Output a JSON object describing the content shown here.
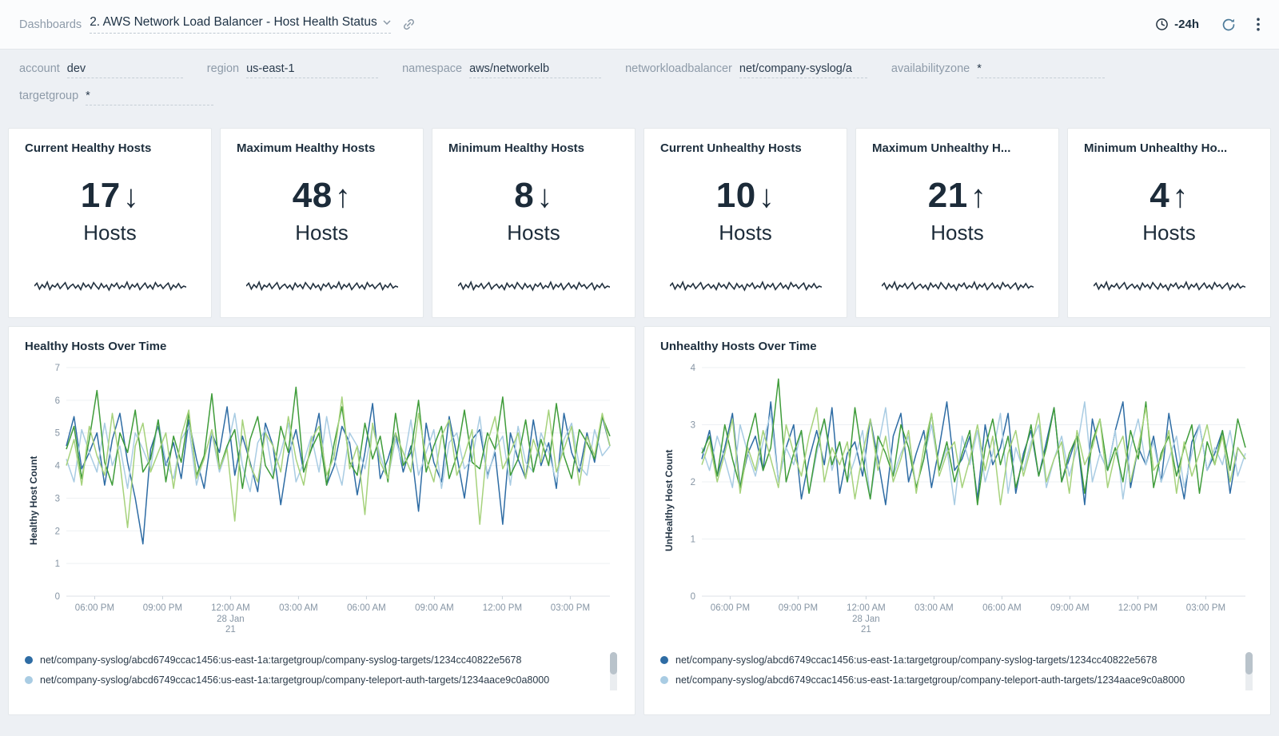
{
  "header": {
    "breadcrumb": "Dashboards",
    "title": "2. AWS Network Load Balancer - Host Health Status",
    "time_range": "-24h"
  },
  "filters": [
    {
      "label": "account",
      "value": "dev"
    },
    {
      "label": "region",
      "value": "us-east-1"
    },
    {
      "label": "namespace",
      "value": "aws/networkelb"
    },
    {
      "label": "networkloadbalancer",
      "value": "net/company-syslog/a"
    },
    {
      "label": "availabilityzone",
      "value": "*"
    },
    {
      "label": "targetgroup",
      "value": "*"
    }
  ],
  "stat_panels": [
    {
      "title": "Current Healthy Hosts",
      "value": "17",
      "arrow": "↓",
      "unit": "Hosts"
    },
    {
      "title": "Maximum Healthy Hosts",
      "value": "48",
      "arrow": "↑",
      "unit": "Hosts"
    },
    {
      "title": "Minimum Healthy Hosts",
      "value": "8",
      "arrow": "↓",
      "unit": "Hosts"
    },
    {
      "title": "Current Unhealthy Hosts",
      "value": "10",
      "arrow": "↓",
      "unit": "Hosts"
    },
    {
      "title": "Maximum Unhealthy H...",
      "value": "21",
      "arrow": "↑",
      "unit": "Hosts"
    },
    {
      "title": "Minimum Unhealthy Ho...",
      "value": "4",
      "arrow": "↑",
      "unit": "Hosts"
    }
  ],
  "sparkline": [
    0.5,
    0.56,
    0.44,
    0.53,
    0.47,
    0.58,
    0.43,
    0.52,
    0.48,
    0.55,
    0.45,
    0.51,
    0.57,
    0.44,
    0.5,
    0.54,
    0.46,
    0.52,
    0.43,
    0.56,
    0.48,
    0.53,
    0.45,
    0.57,
    0.5,
    0.44,
    0.55,
    0.47,
    0.52,
    0.42,
    0.54,
    0.49,
    0.56,
    0.45,
    0.51,
    0.47,
    0.58,
    0.44,
    0.53,
    0.48,
    0.55,
    0.43,
    0.5,
    0.56,
    0.46,
    0.52,
    0.44,
    0.57,
    0.49,
    0.53,
    0.45,
    0.51,
    0.56,
    0.43,
    0.52,
    0.47,
    0.55,
    0.46,
    0.5,
    0.48
  ],
  "chart_data": [
    {
      "type": "line",
      "title": "Healthy Hosts Over Time",
      "ylabel": "Healthy Host Count",
      "ylim": [
        0,
        7
      ],
      "yticks": [
        0,
        1,
        2,
        3,
        4,
        5,
        6,
        7
      ],
      "grid": true,
      "legend_position": "bottom",
      "xticks": [
        {
          "label": "06:00 PM"
        },
        {
          "label": "09:00 PM"
        },
        {
          "label": "12:00 AM",
          "sub": [
            "28 Jan",
            "21"
          ]
        },
        {
          "label": "03:00 AM"
        },
        {
          "label": "06:00 AM"
        },
        {
          "label": "09:00 AM"
        },
        {
          "label": "12:00 PM"
        },
        {
          "label": "03:00 PM"
        }
      ],
      "series": [
        {
          "color": "#2e6ca4",
          "values": [
            4.6,
            5.5,
            3.9,
            4.4,
            5.0,
            3.4,
            4.8,
            5.6,
            4.1,
            3.0,
            1.6,
            4.5,
            5.2,
            4.0,
            4.7,
            3.6,
            5.4,
            4.2,
            3.3,
            5.0,
            4.4,
            5.8,
            3.7,
            4.9,
            4.1,
            3.2,
            5.3,
            4.6,
            2.8,
            4.3,
            5.1,
            3.8,
            4.5,
            5.6,
            3.4,
            4.0,
            5.2,
            4.7,
            3.1,
            4.4,
            5.9,
            3.6,
            4.2,
            5.0,
            3.8,
            4.6,
            2.6,
            5.3,
            4.1,
            3.5,
            5.5,
            4.3,
            3.0,
            4.8,
            5.1,
            3.7,
            4.4,
            2.2,
            5.0,
            4.2,
            3.6,
            5.4,
            4.0,
            4.7,
            3.3,
            5.6,
            4.4,
            3.8,
            5.0,
            4.1,
            5.5,
            4.6
          ]
        },
        {
          "color": "#a9cce3",
          "values": [
            4.2,
            3.5,
            5.1,
            4.4,
            3.8,
            5.3,
            4.0,
            4.6,
            3.3,
            5.0,
            4.5,
            3.9,
            5.4,
            4.1,
            3.6,
            4.8,
            5.2,
            3.4,
            4.3,
            5.0,
            3.8,
            4.5,
            5.6,
            4.0,
            3.2,
            4.7,
            5.1,
            3.7,
            4.4,
            5.3,
            3.5,
            4.1,
            4.9,
            3.8,
            5.5,
            4.2,
            3.4,
            5.0,
            4.6,
            3.9,
            5.2,
            4.3,
            3.6,
            4.8,
            4.0,
            5.4,
            3.7,
            4.4,
            5.1,
            3.3,
            4.7,
            5.0,
            3.9,
            4.2,
            5.5,
            3.6,
            4.5,
            4.9,
            3.4,
            5.2,
            4.1,
            3.8,
            5.0,
            4.4,
            3.5,
            4.8,
            5.3,
            4.0,
            3.7,
            5.1,
            4.3,
            4.6
          ]
        },
        {
          "color": "#3f9c3a",
          "values": [
            4.5,
            5.2,
            3.6,
            4.8,
            6.3,
            4.1,
            3.4,
            5.0,
            4.4,
            5.7,
            3.8,
            4.2,
            5.4,
            3.5,
            4.9,
            4.1,
            5.6,
            3.7,
            4.3,
            6.2,
            3.9,
            4.6,
            5.1,
            3.3,
            4.8,
            5.5,
            4.0,
            3.6,
            5.2,
            4.4,
            6.4,
            3.8,
            4.5,
            5.0,
            3.4,
            4.7,
            5.8,
            4.1,
            3.7,
            5.3,
            4.2,
            4.9,
            3.5,
            5.6,
            4.0,
            4.4,
            6.0,
            3.8,
            4.6,
            5.2,
            3.6,
            4.3,
            5.7,
            4.1,
            3.9,
            5.0,
            4.5,
            6.1,
            3.7,
            4.2,
            5.4,
            3.8,
            4.8,
            4.0,
            5.9,
            4.3,
            3.6,
            5.1,
            4.7,
            4.2,
            5.5,
            4.9
          ]
        },
        {
          "color": "#a6d27c",
          "values": [
            4.0,
            4.8,
            3.4,
            5.2,
            4.3,
            3.7,
            5.6,
            4.1,
            2.1,
            4.6,
            5.3,
            3.8,
            4.4,
            5.0,
            3.3,
            4.9,
            5.7,
            3.6,
            4.2,
            5.1,
            3.9,
            4.5,
            2.3,
            5.4,
            4.0,
            3.5,
            5.0,
            4.6,
            3.8,
            5.5,
            4.2,
            3.4,
            4.8,
            5.2,
            3.7,
            4.3,
            6.1,
            3.9,
            4.6,
            2.5,
            5.3,
            4.1,
            3.6,
            5.0,
            4.4,
            3.8,
            5.6,
            4.2,
            3.5,
            4.9,
            5.4,
            3.7,
            4.3,
            5.1,
            2.2,
            4.7,
            5.5,
            3.9,
            4.4,
            5.0,
            3.6,
            4.8,
            4.1,
            5.7,
            3.8,
            4.5,
            5.2,
            3.4,
            4.9,
            4.3,
            5.6,
            4.6
          ]
        }
      ],
      "legend": [
        {
          "color": "#2e6ca4",
          "label": "net/company-syslog/abcd6749ccac1456:us-east-1a:targetgroup/company-syslog-targets/1234cc40822e5678"
        },
        {
          "color": "#a9cce3",
          "label": "net/company-syslog/abcd6749ccac1456:us-east-1a:targetgroup/company-teleport-auth-targets/1234aace9c0a8000"
        }
      ]
    },
    {
      "type": "line",
      "title": "Unhealthy Hosts Over Time",
      "ylabel": "UnHealthy Host Count",
      "ylim": [
        0,
        4
      ],
      "yticks": [
        0,
        1,
        2,
        3,
        4
      ],
      "grid": true,
      "legend_position": "bottom",
      "xticks": [
        {
          "label": "06:00 PM"
        },
        {
          "label": "09:00 PM"
        },
        {
          "label": "12:00 AM",
          "sub": [
            "28 Jan",
            "21"
          ]
        },
        {
          "label": "03:00 AM"
        },
        {
          "label": "06:00 AM"
        },
        {
          "label": "09:00 AM"
        },
        {
          "label": "12:00 PM"
        },
        {
          "label": "03:00 PM"
        }
      ],
      "series": [
        {
          "color": "#2e6ca4",
          "values": [
            2.4,
            2.9,
            2.1,
            2.6,
            3.2,
            1.9,
            2.5,
            2.8,
            2.2,
            3.4,
            2.0,
            2.6,
            3.0,
            1.7,
            2.4,
            2.9,
            2.3,
            3.3,
            1.8,
            2.5,
            2.7,
            2.1,
            3.1,
            2.4,
            1.6,
            2.8,
            3.2,
            2.0,
            2.5,
            2.9,
            1.9,
            2.6,
            3.4,
            2.2,
            2.4,
            2.8,
            1.7,
            3.0,
            2.3,
            2.6,
            3.2,
            1.8,
            2.5,
            2.9,
            2.1,
            2.7,
            3.3,
            2.0,
            2.4,
            2.8,
            1.6,
            3.1,
            2.5,
            2.2,
            2.9,
            3.4,
            1.9,
            2.6,
            2.3,
            2.8,
            2.0,
            3.2,
            2.4,
            1.7,
            2.7,
            3.0,
            2.2,
            2.5,
            2.9,
            1.8,
            2.6,
            2.4
          ]
        },
        {
          "color": "#a9cce3",
          "values": [
            2.6,
            2.2,
            2.8,
            2.4,
            1.9,
            3.0,
            2.5,
            2.1,
            2.7,
            3.2,
            2.0,
            2.6,
            2.3,
            2.9,
            1.8,
            2.5,
            3.1,
            2.2,
            2.7,
            2.0,
            2.4,
            2.9,
            1.7,
            2.6,
            3.3,
            2.1,
            2.5,
            2.8,
            1.9,
            2.4,
            3.0,
            2.2,
            2.6,
            1.6,
            2.8,
            2.3,
            2.9,
            2.0,
            2.5,
            3.2,
            1.8,
            2.6,
            2.2,
            2.7,
            3.0,
            1.9,
            2.4,
            2.8,
            2.1,
            2.6,
            3.4,
            2.0,
            2.5,
            2.2,
            2.9,
            1.7,
            2.6,
            3.1,
            2.3,
            2.7,
            2.0,
            2.4,
            2.8,
            1.9,
            2.5,
            3.0,
            2.2,
            2.6,
            2.3,
            2.9,
            2.1,
            2.5
          ]
        },
        {
          "color": "#3f9c3a",
          "values": [
            2.5,
            2.8,
            2.1,
            3.0,
            2.4,
            1.9,
            2.7,
            3.2,
            2.2,
            2.6,
            3.8,
            2.0,
            2.5,
            2.9,
            1.8,
            2.6,
            3.1,
            2.3,
            2.7,
            2.0,
            3.3,
            2.4,
            1.7,
            2.8,
            2.5,
            2.1,
            3.0,
            2.6,
            1.9,
            2.4,
            3.2,
            2.2,
            2.7,
            2.0,
            2.5,
            2.9,
            1.6,
            2.6,
            3.1,
            2.3,
            2.8,
            1.9,
            2.4,
            3.0,
            2.1,
            2.6,
            3.3,
            2.0,
            2.5,
            2.8,
            1.8,
            2.7,
            3.1,
            2.2,
            2.6,
            2.0,
            2.9,
            2.4,
            3.4,
            1.9,
            2.5,
            2.8,
            2.1,
            2.6,
            3.0,
            1.8,
            2.7,
            2.3,
            2.9,
            2.2,
            3.1,
            2.6
          ]
        },
        {
          "color": "#a6d27c",
          "values": [
            2.3,
            2.7,
            2.0,
            2.5,
            3.1,
            1.8,
            2.6,
            2.2,
            2.9,
            2.4,
            1.9,
            3.0,
            2.5,
            2.1,
            2.8,
            3.3,
            2.0,
            2.6,
            2.3,
            2.7,
            1.7,
            2.5,
            3.1,
            2.2,
            2.8,
            2.0,
            2.4,
            2.9,
            1.8,
            2.6,
            3.2,
            2.1,
            2.5,
            2.7,
            1.9,
            2.4,
            3.0,
            2.2,
            2.8,
            1.6,
            2.5,
            2.9,
            2.1,
            2.6,
            3.2,
            2.0,
            2.4,
            2.7,
            1.8,
            2.9,
            2.3,
            2.6,
            3.1,
            1.9,
            2.5,
            2.8,
            2.0,
            2.6,
            3.3,
            2.2,
            2.4,
            2.9,
            1.8,
            2.7,
            2.1,
            2.5,
            3.0,
            2.3,
            2.8,
            2.0,
            2.6,
            2.4
          ]
        }
      ],
      "legend": [
        {
          "color": "#2e6ca4",
          "label": "net/company-syslog/abcd6749ccac1456:us-east-1a:targetgroup/company-syslog-targets/1234cc40822e5678"
        },
        {
          "color": "#a9cce3",
          "label": "net/company-syslog/abcd6749ccac1456:us-east-1a:targetgroup/company-teleport-auth-targets/1234aace9c0a8000"
        }
      ]
    }
  ],
  "colors": {
    "accent": "#2e6ca4",
    "text_dark": "#1e2f3e",
    "text_gray": "#8e9ba9",
    "series": [
      "#2e6ca4",
      "#a9cce3",
      "#3f9c3a",
      "#a6d27c"
    ]
  }
}
